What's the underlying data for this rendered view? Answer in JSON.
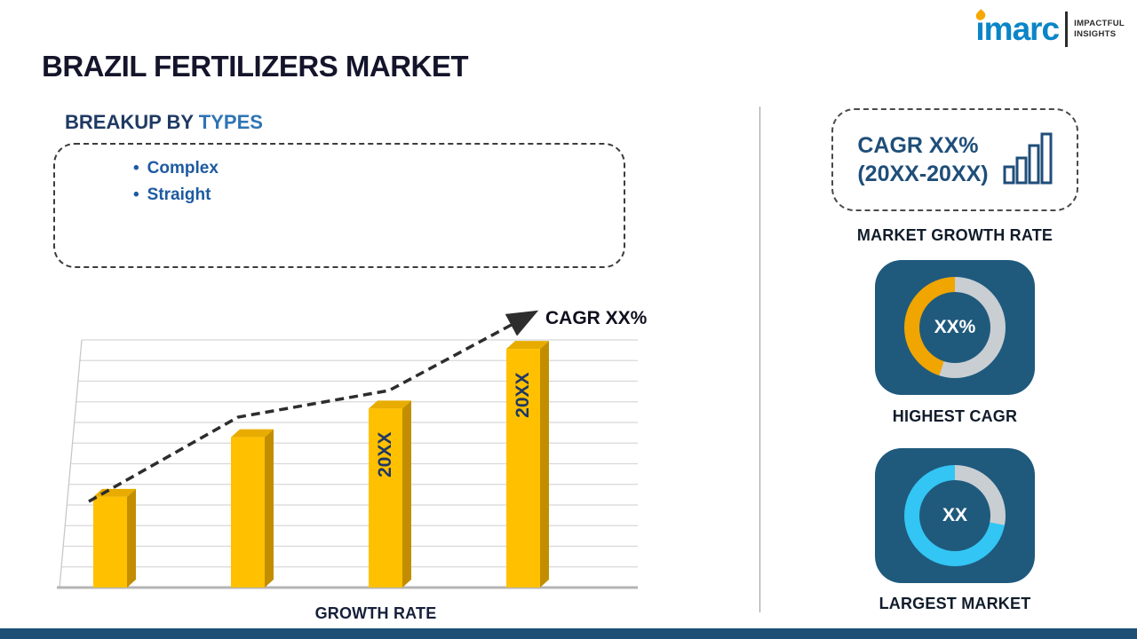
{
  "header": {
    "title": "BRAZIL FERTILIZERS MARKET",
    "logo": {
      "brand": "imarc",
      "tagline1": "IMPACTFUL",
      "tagline2": "INSIGHTS"
    }
  },
  "breakup": {
    "heading_prefix": "BREAKUP BY ",
    "heading_highlight": "TYPES",
    "bullet": "•",
    "items": [
      "Complex",
      "Straight"
    ]
  },
  "chart_data": {
    "type": "bar",
    "title": "Growth rate bar chart with rising dashed CAGR trend arrow",
    "categories": [
      "",
      "",
      "20XX",
      "20XX"
    ],
    "values": [
      38,
      63,
      75,
      100
    ],
    "ylim": [
      0,
      106
    ],
    "xlabel": "GROWTH RATE",
    "trend_label": "CAGR XX%",
    "bar_color": "#ffc000",
    "bar_side_color": "#c28e00",
    "bar_top_color": "#e8ac00",
    "label_color": "#1f3864",
    "grid": true,
    "trend_points": [
      [
        38,
        227
      ],
      [
        206,
        132
      ],
      [
        376,
        102
      ],
      [
        538,
        15
      ]
    ]
  },
  "sidebar": {
    "growth_box": {
      "line1": "CAGR XX%",
      "line2": "(20XX-20XX)"
    },
    "captions": {
      "growth": "MARKET GROWTH RATE",
      "cagr": "HIGHEST CAGR",
      "market": "LARGEST MARKET"
    },
    "highest_cagr": {
      "value": "XX%",
      "percent": 45,
      "arc_color": "#f0a500",
      "track_color": "#c9ced3"
    },
    "largest_market": {
      "value": "XX",
      "percent": 72,
      "arc_color": "#33c5f3",
      "track_color": "#c9ced3"
    }
  }
}
